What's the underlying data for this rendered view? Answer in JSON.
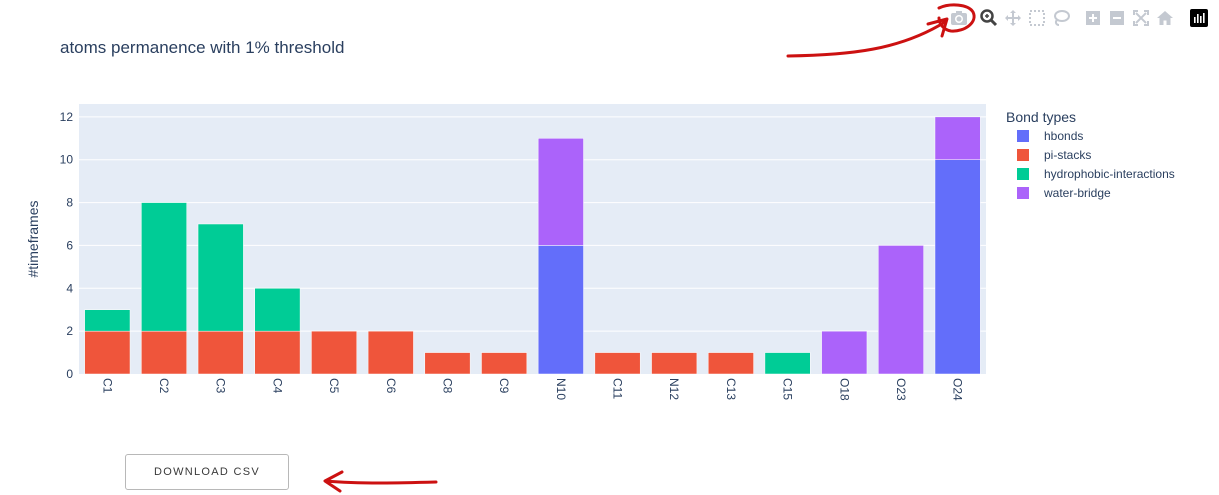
{
  "toolbar": {
    "icons": [
      "camera-icon",
      "zoom-icon",
      "pan-icon",
      "box-select-icon",
      "lasso-select-icon",
      "zoom-in-icon",
      "zoom-out-icon",
      "autoscale-icon",
      "reset-axes-icon",
      "plotly-logo-icon"
    ]
  },
  "download": {
    "label": "DOWNLOAD CSV"
  },
  "colors": {
    "hbonds": "#636efa",
    "pi-stacks": "#ef553b",
    "hydrophobic-interactions": "#00cc96",
    "water-bridge": "#ab63fa",
    "plot_bg": "#e5ecf6",
    "annotation": "#cc1111"
  },
  "chart_data": {
    "type": "bar",
    "barmode": "stack",
    "title": "atoms permanence with 1% threshold",
    "xlabel": "",
    "ylabel": "#timeframes",
    "ylim": [
      0,
      12.6
    ],
    "yticks": [
      0,
      2,
      4,
      6,
      8,
      10,
      12
    ],
    "grid": true,
    "legend_title": "Bond types",
    "legend_position": "right",
    "categories": [
      "C1",
      "C2",
      "C3",
      "C4",
      "C5",
      "C6",
      "C8",
      "C9",
      "N10",
      "C11",
      "N12",
      "C13",
      "C15",
      "O18",
      "O23",
      "O24"
    ],
    "series": [
      {
        "name": "hbonds",
        "values": [
          0,
          0,
          0,
          0,
          0,
          0,
          0,
          0,
          6,
          0,
          0,
          0,
          0,
          0,
          0,
          10
        ]
      },
      {
        "name": "pi-stacks",
        "values": [
          2,
          2,
          2,
          2,
          2,
          2,
          1,
          1,
          0,
          1,
          1,
          1,
          0,
          0,
          0,
          0
        ]
      },
      {
        "name": "hydrophobic-interactions",
        "values": [
          1,
          6,
          5,
          2,
          0,
          0,
          0,
          0,
          0,
          0,
          0,
          0,
          1,
          0,
          0,
          0
        ]
      },
      {
        "name": "water-bridge",
        "values": [
          0,
          0,
          0,
          0,
          0,
          0,
          0,
          0,
          5,
          0,
          0,
          0,
          0,
          2,
          6,
          2
        ]
      }
    ]
  }
}
